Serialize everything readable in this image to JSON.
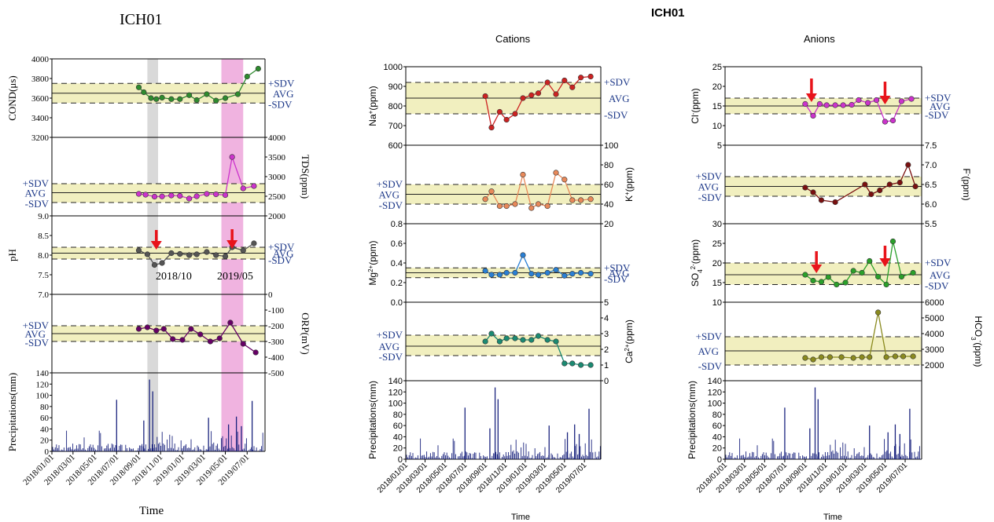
{
  "figure": {
    "left_title": "ICH01",
    "right_title": "ICH01",
    "cations_title": "Cations",
    "anions_title": "Anions",
    "time_label": "Time",
    "precip_label": "Precipitations(mm)",
    "sdv_plus": "+SDV",
    "avg": "AVG",
    "sdv_minus": "-SDV",
    "ann_2018": "2018/10",
    "ann_2019": "2019/05",
    "date_ticks": [
      "2018/01/01",
      "2018/03/01",
      "2018/05/01",
      "2018/07/01",
      "2018/09/01",
      "2018/11/01",
      "2019/01/01",
      "2019/03/01",
      "2019/05/01",
      "2019/07/01"
    ],
    "colors": {
      "band": "#f1efbf",
      "gray_highlight": "#d9d9d9",
      "pink_highlight": "#f0b3e0",
      "label_blue": "#1f3a8a",
      "arrow": "#e8141b",
      "precip_bar": "#1a237e"
    }
  },
  "chart_data": [
    {
      "id": "cond",
      "type": "line",
      "ylabel": "COND(μs)",
      "ylim": [
        3200,
        4000
      ],
      "yticks": [
        3200,
        3400,
        3600,
        3800,
        4000
      ],
      "axis_side": "left",
      "sdv": [
        3550,
        3650,
        3750
      ],
      "color": "#2e8b2e",
      "x": [
        "2018/09/01",
        "2018/09/15",
        "2018/10/05",
        "2018/10/20",
        "2018/11/05",
        "2018/12/01",
        "2018/12/25",
        "2019/01/20",
        "2019/02/10",
        "2019/03/10",
        "2019/04/05",
        "2019/05/01",
        "2019/06/05",
        "2019/07/01",
        "2019/08/01"
      ],
      "values": [
        3710,
        3660,
        3600,
        3590,
        3605,
        3590,
        3590,
        3630,
        3580,
        3640,
        3575,
        3600,
        3640,
        3820,
        3900
      ]
    },
    {
      "id": "tds",
      "type": "line",
      "ylabel": "TDS(ppm)",
      "ylim": [
        2000,
        4000
      ],
      "yticks": [
        2000,
        2500,
        3000,
        3500,
        4000
      ],
      "axis_side": "right",
      "sdv": [
        2340,
        2590,
        2820
      ],
      "color": "#cc33cc",
      "x": [
        "2018/09/01",
        "2018/09/20",
        "2018/10/15",
        "2018/11/05",
        "2018/12/01",
        "2018/12/25",
        "2019/01/20",
        "2019/02/10",
        "2019/03/10",
        "2019/04/05",
        "2019/05/01",
        "2019/05/20",
        "2019/06/20",
        "2019/07/20"
      ],
      "values": [
        2560,
        2540,
        2490,
        2495,
        2520,
        2510,
        2440,
        2500,
        2560,
        2550,
        2530,
        3500,
        2700,
        2760
      ]
    },
    {
      "id": "ph",
      "type": "line",
      "ylabel": "pH",
      "ylim": [
        7.0,
        9.0
      ],
      "yticks": [
        7.0,
        7.5,
        8.0,
        8.5,
        9.0
      ],
      "axis_side": "left",
      "sdv": [
        7.9,
        8.05,
        8.2
      ],
      "color": "#555555",
      "x": [
        "2018/09/01",
        "2018/09/25",
        "2018/10/15",
        "2018/11/05",
        "2018/12/01",
        "2018/12/25",
        "2019/01/20",
        "2019/02/10",
        "2019/03/10",
        "2019/04/05",
        "2019/05/01",
        "2019/05/20",
        "2019/06/20",
        "2019/07/20"
      ],
      "values": [
        8.12,
        8.02,
        7.75,
        7.8,
        8.05,
        8.03,
        8.0,
        8.02,
        8.08,
        8.0,
        7.97,
        8.2,
        8.12,
        8.3
      ]
    },
    {
      "id": "orp",
      "type": "line",
      "ylabel": "ORP(mV)",
      "ylim": [
        -500,
        0
      ],
      "yticks": [
        -500,
        -400,
        -300,
        -200,
        -100,
        0
      ],
      "axis_side": "right",
      "sdv": [
        -300,
        -250,
        -200
      ],
      "color": "#660066",
      "x": [
        "2018/09/01",
        "2018/09/25",
        "2018/10/20",
        "2018/11/10",
        "2018/12/05",
        "2019/01/01",
        "2019/01/25",
        "2019/02/20",
        "2019/03/20",
        "2019/04/15",
        "2019/05/15",
        "2019/06/20",
        "2019/07/25"
      ],
      "values": [
        -220,
        -210,
        -230,
        -220,
        -285,
        -290,
        -220,
        -255,
        -300,
        -280,
        -180,
        -315,
        -370
      ]
    },
    {
      "id": "precip_left",
      "type": "bar",
      "ylabel": "Precipitations(mm)",
      "ylim": [
        0,
        140
      ],
      "yticks": [
        0,
        20,
        40,
        60,
        80,
        100,
        120,
        140
      ],
      "axis_side": "left",
      "x": [
        "2018/07/01",
        "2018/09/15",
        "2018/10/01",
        "2018/10/10",
        "2019/03/15",
        "2019/05/10",
        "2019/06/01",
        "2019/06/15",
        "2019/07/15"
      ],
      "values": [
        92,
        55,
        128,
        107,
        60,
        48,
        62,
        45,
        90
      ]
    },
    {
      "id": "na",
      "type": "line",
      "ylabel": "Na+(ppm)",
      "ylim": [
        600,
        1000
      ],
      "yticks": [
        600,
        700,
        800,
        900,
        1000
      ],
      "axis_side": "left",
      "sdv": [
        760,
        840,
        920
      ],
      "color": "#cc2222",
      "x": [
        "2018/09/01",
        "2018/09/20",
        "2018/10/15",
        "2018/11/05",
        "2018/12/01",
        "2018/12/25",
        "2019/01/20",
        "2019/02/10",
        "2019/03/10",
        "2019/04/05",
        "2019/05/01",
        "2019/05/25",
        "2019/06/20",
        "2019/07/20"
      ],
      "values": [
        850,
        690,
        770,
        730,
        760,
        840,
        855,
        865,
        920,
        860,
        930,
        895,
        945,
        950
      ]
    },
    {
      "id": "k",
      "type": "line",
      "ylabel": "K+(ppm)",
      "ylim": [
        20,
        100
      ],
      "yticks": [
        20,
        40,
        60,
        80,
        100
      ],
      "axis_side": "right",
      "sdv": [
        40,
        50,
        60
      ],
      "color": "#e8895a",
      "x": [
        "2018/09/01",
        "2018/09/20",
        "2018/10/15",
        "2018/11/05",
        "2018/12/01",
        "2018/12/25",
        "2019/01/20",
        "2019/02/10",
        "2019/03/10",
        "2019/04/05",
        "2019/05/01",
        "2019/05/25",
        "2019/06/20",
        "2019/07/20"
      ],
      "values": [
        45,
        53,
        38,
        38,
        40,
        70,
        36,
        40,
        38,
        72,
        65,
        44,
        44,
        45
      ]
    },
    {
      "id": "mg",
      "type": "line",
      "ylabel": "Mg2+(ppm)",
      "ylim": [
        0.0,
        0.8
      ],
      "yticks": [
        0.0,
        0.2,
        0.4,
        0.6,
        0.8
      ],
      "axis_side": "left",
      "sdv": [
        0.25,
        0.3,
        0.35
      ],
      "color": "#2a7fd4",
      "x": [
        "2018/09/01",
        "2018/09/20",
        "2018/10/15",
        "2018/11/05",
        "2018/12/01",
        "2018/12/25",
        "2019/01/20",
        "2019/02/10",
        "2019/03/10",
        "2019/04/05",
        "2019/05/01",
        "2019/05/25",
        "2019/06/20",
        "2019/07/20"
      ],
      "values": [
        0.32,
        0.28,
        0.28,
        0.3,
        0.3,
        0.48,
        0.29,
        0.28,
        0.3,
        0.33,
        0.27,
        0.29,
        0.3,
        0.29
      ]
    },
    {
      "id": "ca",
      "type": "line",
      "ylabel": "Ca2+(ppm)",
      "ylim": [
        0,
        5
      ],
      "yticks": [
        0,
        1,
        2,
        3,
        4,
        5
      ],
      "axis_side": "right",
      "sdv": [
        1.6,
        2.2,
        2.9
      ],
      "color": "#1b8a72",
      "x": [
        "2018/09/01",
        "2018/09/20",
        "2018/10/15",
        "2018/11/05",
        "2018/12/01",
        "2018/12/25",
        "2019/01/20",
        "2019/02/10",
        "2019/03/10",
        "2019/04/05",
        "2019/05/01",
        "2019/05/25",
        "2019/06/20",
        "2019/07/20"
      ],
      "values": [
        2.5,
        3.0,
        2.5,
        2.7,
        2.7,
        2.6,
        2.6,
        2.85,
        2.6,
        2.5,
        1.1,
        1.1,
        1.0,
        1.0
      ]
    },
    {
      "id": "precip_mid",
      "type": "bar",
      "ylabel": "Precipitations(mm)",
      "ylim": [
        0,
        140
      ],
      "yticks": [
        0,
        20,
        40,
        60,
        80,
        100,
        120,
        140
      ],
      "axis_side": "left",
      "x": [
        "2018/07/01",
        "2018/09/15",
        "2018/10/01",
        "2018/10/10",
        "2019/03/15",
        "2019/05/10",
        "2019/06/01",
        "2019/06/15",
        "2019/07/15"
      ],
      "values": [
        92,
        55,
        128,
        107,
        60,
        48,
        62,
        45,
        90
      ]
    },
    {
      "id": "cl",
      "type": "line",
      "ylabel": "Cl-(ppm)",
      "ylim": [
        5,
        25
      ],
      "yticks": [
        5,
        10,
        15,
        20,
        25
      ],
      "axis_side": "left",
      "sdv": [
        13,
        15,
        17
      ],
      "color": "#cc33cc",
      "x": [
        "2018/09/01",
        "2018/09/25",
        "2018/10/15",
        "2018/11/05",
        "2018/12/01",
        "2018/12/25",
        "2019/01/20",
        "2019/02/10",
        "2019/03/10",
        "2019/04/05",
        "2019/05/01",
        "2019/05/25",
        "2019/06/20",
        "2019/07/20"
      ],
      "values": [
        15.5,
        12.5,
        15.5,
        15.2,
        15.2,
        15.2,
        15.3,
        16.5,
        15.8,
        16.5,
        11,
        11.3,
        16.2,
        16.8
      ]
    },
    {
      "id": "f",
      "type": "line",
      "ylabel": "F-(ppm)",
      "ylim": [
        5.5,
        7.5
      ],
      "yticks": [
        5.5,
        6.0,
        6.5,
        7.0,
        7.5
      ],
      "axis_side": "right",
      "sdv": [
        6.2,
        6.45,
        6.7
      ],
      "color": "#7a1010",
      "x": [
        "2018/09/01",
        "2018/09/25",
        "2018/10/20",
        "2018/12/01",
        "2019/03/01",
        "2019/03/20",
        "2019/04/15",
        "2019/05/15",
        "2019/06/15",
        "2019/07/10",
        "2019/08/01"
      ],
      "values": [
        6.42,
        6.3,
        6.1,
        6.05,
        6.5,
        6.25,
        6.35,
        6.5,
        6.55,
        7.0,
        6.45
      ]
    },
    {
      "id": "so4",
      "type": "line",
      "ylabel": "SO42-(ppm)",
      "ylim": [
        10,
        30
      ],
      "yticks": [
        10,
        15,
        20,
        25,
        30
      ],
      "axis_side": "left",
      "sdv": [
        14.5,
        17,
        20
      ],
      "color": "#2aa02a",
      "x": [
        "2018/09/01",
        "2018/09/25",
        "2018/10/20",
        "2018/11/10",
        "2018/12/05",
        "2019/01/01",
        "2019/01/25",
        "2019/02/20",
        "2019/03/15",
        "2019/04/10",
        "2019/05/05",
        "2019/05/25",
        "2019/06/20",
        "2019/07/25"
      ],
      "values": [
        17,
        15.5,
        15.2,
        16.4,
        14.5,
        15,
        18,
        17.5,
        20.5,
        16.5,
        14.5,
        25.5,
        16.5,
        17.5
      ]
    },
    {
      "id": "hco3",
      "type": "line",
      "ylabel": "HCO3-(ppm)",
      "ylim": [
        1000,
        6000
      ],
      "yticks": [
        2000,
        3000,
        4000,
        5000,
        6000
      ],
      "axis_side": "right",
      "sdv": [
        2000,
        2900,
        3800
      ],
      "color": "#8a8a1f",
      "x": [
        "2018/09/01",
        "2018/09/25",
        "2018/10/20",
        "2018/11/15",
        "2018/12/20",
        "2019/01/25",
        "2019/02/20",
        "2019/03/15",
        "2019/04/10",
        "2019/05/05",
        "2019/06/01",
        "2019/06/25",
        "2019/07/25"
      ],
      "values": [
        2450,
        2350,
        2500,
        2500,
        2500,
        2450,
        2500,
        2500,
        5350,
        2500,
        2550,
        2550,
        2550
      ]
    },
    {
      "id": "precip_right",
      "type": "bar",
      "ylabel": "Precipitations(mm)",
      "ylim": [
        0,
        140
      ],
      "yticks": [
        0,
        20,
        40,
        60,
        80,
        100,
        120,
        140
      ],
      "axis_side": "left",
      "x": [
        "2018/07/01",
        "2018/09/15",
        "2018/10/01",
        "2018/10/10",
        "2019/03/15",
        "2019/05/10",
        "2019/06/01",
        "2019/06/15",
        "2019/07/15"
      ],
      "values": [
        92,
        55,
        128,
        107,
        60,
        48,
        62,
        45,
        90
      ]
    }
  ]
}
